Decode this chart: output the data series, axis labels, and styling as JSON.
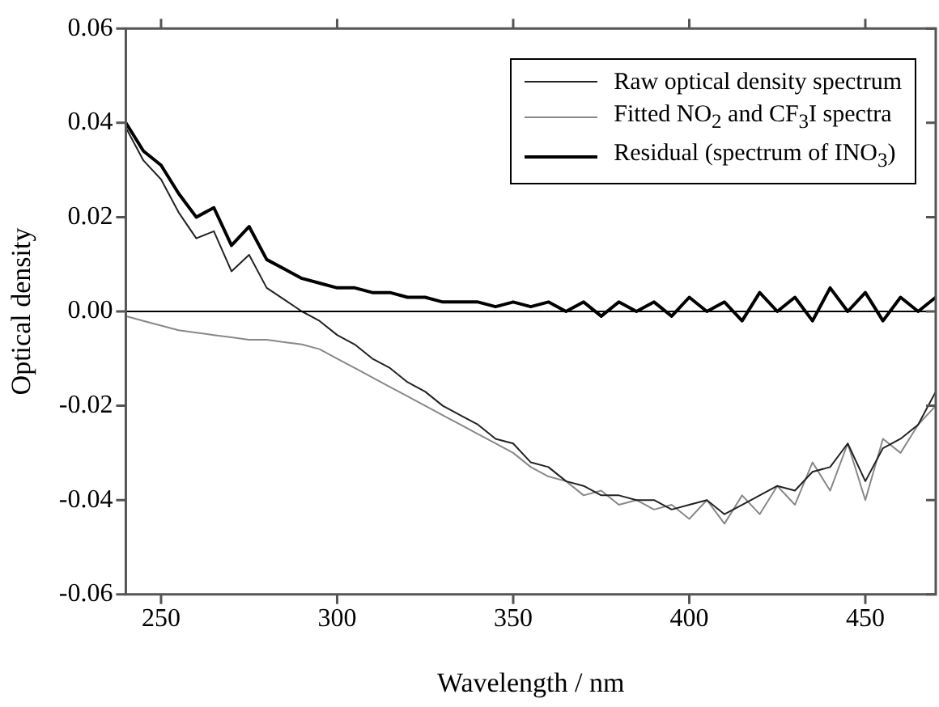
{
  "chart_data": {
    "type": "line",
    "xlabel": "Wavelength / nm",
    "ylabel": "Optical density",
    "x": [
      240,
      245,
      250,
      255,
      260,
      265,
      270,
      275,
      280,
      285,
      290,
      295,
      300,
      305,
      310,
      315,
      320,
      325,
      330,
      335,
      340,
      345,
      350,
      355,
      360,
      365,
      370,
      375,
      380,
      385,
      390,
      395,
      400,
      405,
      410,
      415,
      420,
      425,
      430,
      435,
      440,
      445,
      450,
      455,
      460,
      465,
      470
    ],
    "series": [
      {
        "name": "Raw optical density spectrum",
        "color": "#222222",
        "values": [
          0.039,
          0.032,
          0.028,
          0.021,
          0.0155,
          0.017,
          0.0085,
          0.012,
          0.005,
          0.0025,
          0.0,
          -0.002,
          -0.005,
          -0.007,
          -0.01,
          -0.012,
          -0.015,
          -0.017,
          -0.02,
          -0.022,
          -0.024,
          -0.027,
          -0.028,
          -0.032,
          -0.033,
          -0.036,
          -0.037,
          -0.039,
          -0.039,
          -0.04,
          -0.04,
          -0.042,
          -0.041,
          -0.04,
          -0.043,
          -0.041,
          -0.039,
          -0.037,
          -0.038,
          -0.034,
          -0.033,
          -0.028,
          -0.036,
          -0.029,
          -0.027,
          -0.024,
          -0.017
        ]
      },
      {
        "name": "Fitted NO$_{2}$ and CF$_{3}$I spectra",
        "color": "#888888",
        "values": [
          -0.001,
          -0.002,
          -0.003,
          -0.004,
          -0.0045,
          -0.005,
          -0.0055,
          -0.006,
          -0.006,
          -0.0065,
          -0.007,
          -0.008,
          -0.01,
          -0.012,
          -0.014,
          -0.016,
          -0.018,
          -0.02,
          -0.022,
          -0.024,
          -0.026,
          -0.028,
          -0.03,
          -0.033,
          -0.035,
          -0.036,
          -0.039,
          -0.038,
          -0.041,
          -0.04,
          -0.042,
          -0.041,
          -0.044,
          -0.04,
          -0.045,
          -0.039,
          -0.043,
          -0.037,
          -0.041,
          -0.032,
          -0.038,
          -0.028,
          -0.04,
          -0.027,
          -0.03,
          -0.024,
          -0.02
        ]
      },
      {
        "name": "Residual (spectrum of INO$_{3}$)",
        "color": "#000000",
        "values": [
          0.04,
          0.034,
          0.031,
          0.025,
          0.02,
          0.022,
          0.014,
          0.018,
          0.011,
          0.009,
          0.007,
          0.006,
          0.005,
          0.005,
          0.004,
          0.004,
          0.003,
          0.003,
          0.002,
          0.002,
          0.002,
          0.001,
          0.002,
          0.001,
          0.002,
          0.0,
          0.002,
          -0.001,
          0.002,
          0.0,
          0.002,
          -0.001,
          0.003,
          0.0,
          0.002,
          -0.002,
          0.004,
          0.0,
          0.003,
          -0.002,
          0.005,
          0.0,
          0.004,
          -0.002,
          0.003,
          0.0,
          0.003
        ]
      }
    ],
    "xlim": [
      240,
      470
    ],
    "xticks": [
      250,
      300,
      350,
      400,
      450
    ],
    "ylim": [
      -0.06,
      0.06
    ],
    "yticks": [
      {
        "value": -0.06,
        "label": "-0.06"
      },
      {
        "value": -0.04,
        "label": "-0.04"
      },
      {
        "value": -0.02,
        "label": "-0.02"
      },
      {
        "value": 0,
        "label": "0.00"
      },
      {
        "value": 0.02,
        "label": "0.02"
      },
      {
        "value": 0.04,
        "label": "0.04"
      },
      {
        "value": 0.06,
        "label": "0.06"
      }
    ],
    "ref_lines": [
      {
        "axis": "y",
        "value": 0,
        "color": "#000000"
      }
    ],
    "grid": false,
    "legend": "top right",
    "marker": "none",
    "line_style": "solid"
  }
}
